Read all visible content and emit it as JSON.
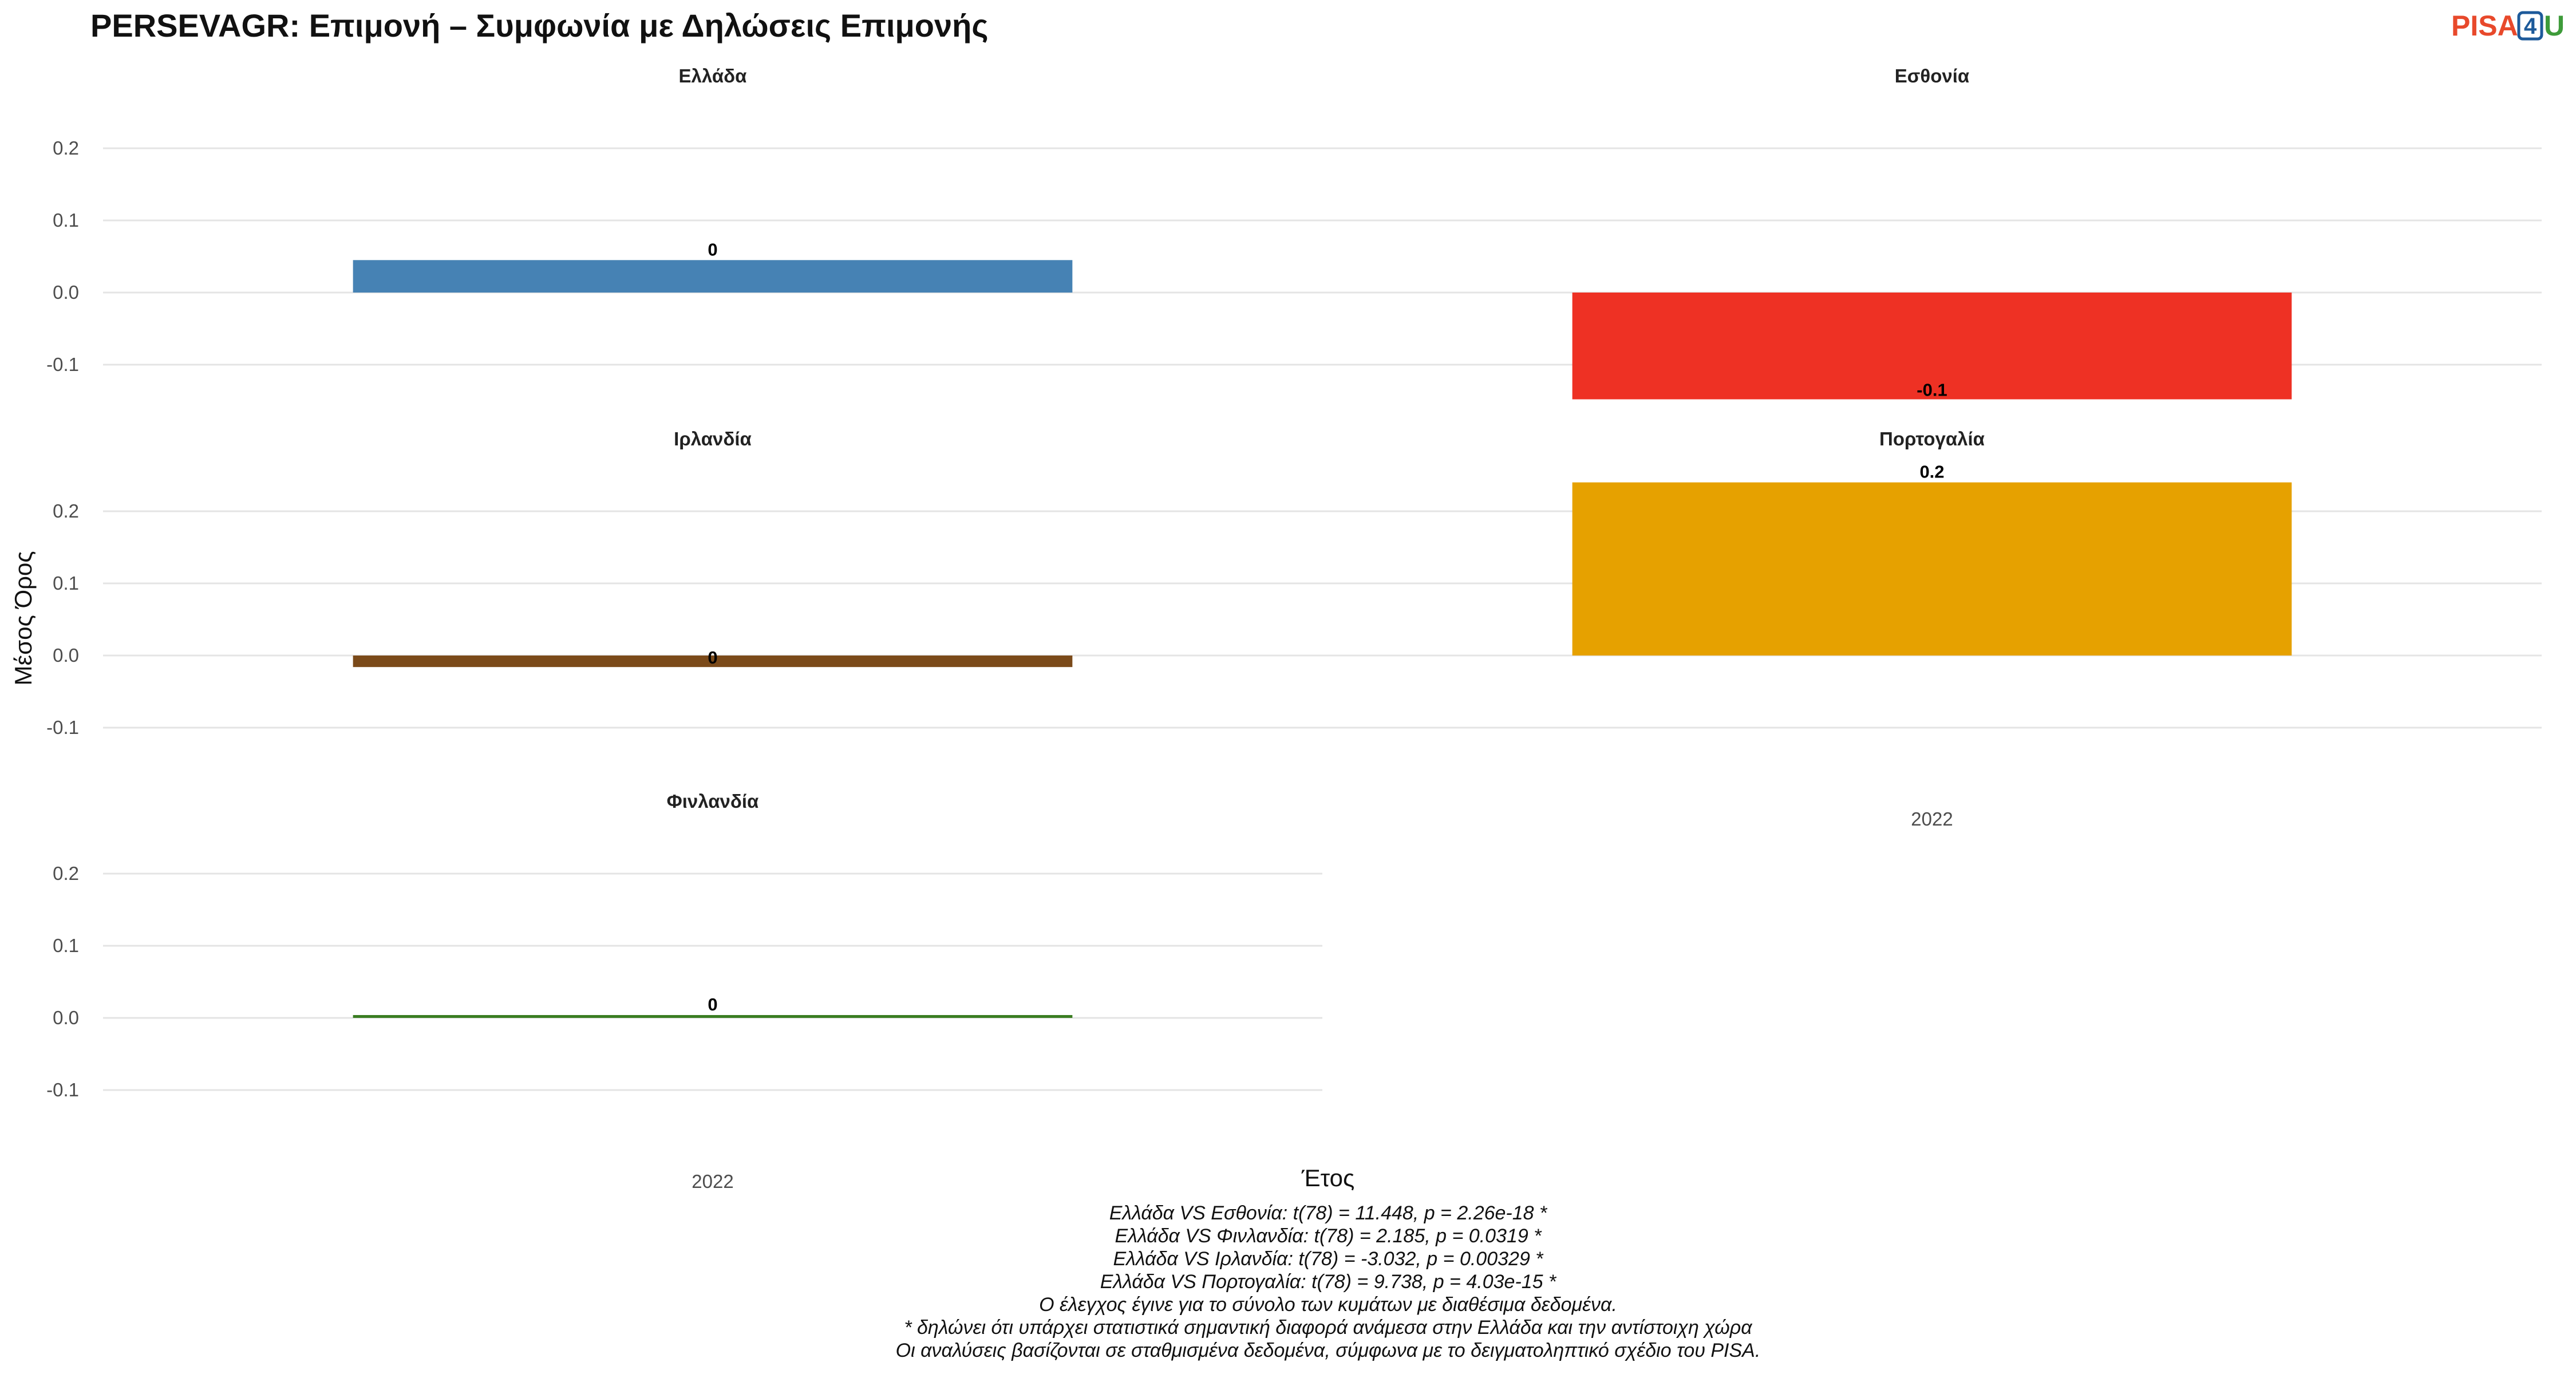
{
  "logo": {
    "part1": "PISA",
    "part2": "4",
    "part3": "U"
  },
  "chart_data": {
    "type": "bar",
    "title": "PERSEVAGR: Επιμονή – Συμφωνία με Δηλώσεις Επιμονής",
    "xlabel": "Έτος",
    "ylabel": "Μέσος Όρος",
    "categories": [
      "2022"
    ],
    "ylim": [
      -0.15,
      0.25
    ],
    "yticks": [
      0.2,
      0.1,
      0.0,
      -0.1
    ],
    "ytick_labels": [
      "0.2",
      "0.1",
      "0.0",
      "-0.1"
    ],
    "grid": true,
    "legend": "none",
    "panels": [
      {
        "name": "Ελλάδα",
        "value": 0.045,
        "label": "0",
        "color": "#4682b4"
      },
      {
        "name": "Εσθονία",
        "value": -0.148,
        "label": "-0.1",
        "color": "#ee3124"
      },
      {
        "name": "Ιρλανδία",
        "value": -0.016,
        "label": "0",
        "color": "#7b4a1a"
      },
      {
        "name": "Πορτογαλία",
        "value": 0.24,
        "label": "0.2",
        "color": "#e6a100"
      },
      {
        "name": "Φινλανδία",
        "value": 0.003,
        "label": "0",
        "color": "#3a7d22"
      }
    ],
    "notes": [
      "Ελλάδα VS Εσθονία: t(78) = 11.448, p = 2.26e-18 *",
      "Ελλάδα VS Φινλανδία: t(78) = 2.185, p = 0.0319 *",
      "Ελλάδα VS Ιρλανδία: t(78) = -3.032, p = 0.00329 *",
      "Ελλάδα VS Πορτογαλία: t(78) = 9.738, p = 4.03e-15 *",
      "Ο έλεγχος έγινε για το σύνολο των κυμάτων με διαθέσιμα δεδομένα.",
      "* δηλώνει ότι υπάρχει στατιστικά σημαντική διαφορά ανάμεσα στην Ελλάδα και την αντίστοιχη χώρα",
      "Οι αναλύσεις βασίζονται σε σταθμισμένα δεδομένα, σύμφωνα με το δειγματοληπτικό σχέδιο του PISA."
    ]
  }
}
